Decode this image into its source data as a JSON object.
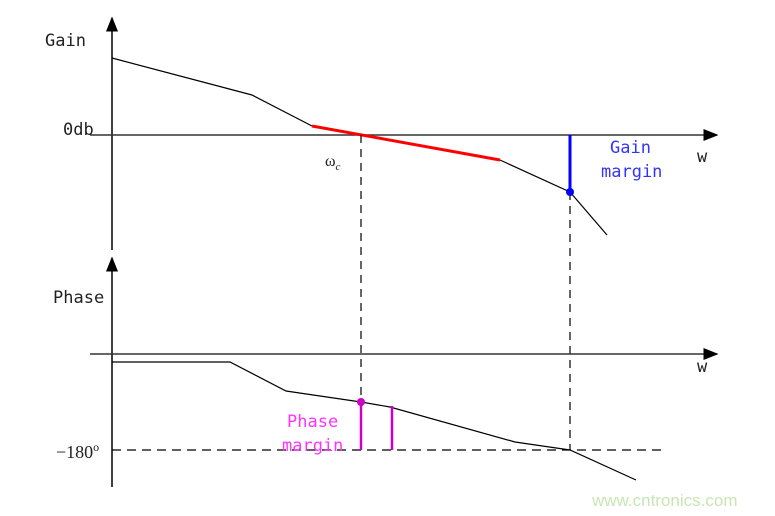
{
  "gain_plot": {
    "y_label": "Gain",
    "zero_label": "0db",
    "x_label": "w",
    "crossover_label": "ω",
    "crossover_sub": "c",
    "margin_label_line1": "Gain",
    "margin_label_line2": "margin"
  },
  "phase_plot": {
    "y_label": "Phase",
    "x_label": "w",
    "ref_label": "−180",
    "ref_sup": "o",
    "margin_label_line1": "Phase",
    "margin_label_line2": "margin"
  },
  "watermark": "www.cntronics.com",
  "colors": {
    "curve": "#000000",
    "gain_crossover_segment": "#ff0000",
    "gain_margin": "#0000ff",
    "phase_margin": "#cc00cc",
    "phase_margin_text": "#ff33ff",
    "watermark": "#c8e6b4"
  }
}
